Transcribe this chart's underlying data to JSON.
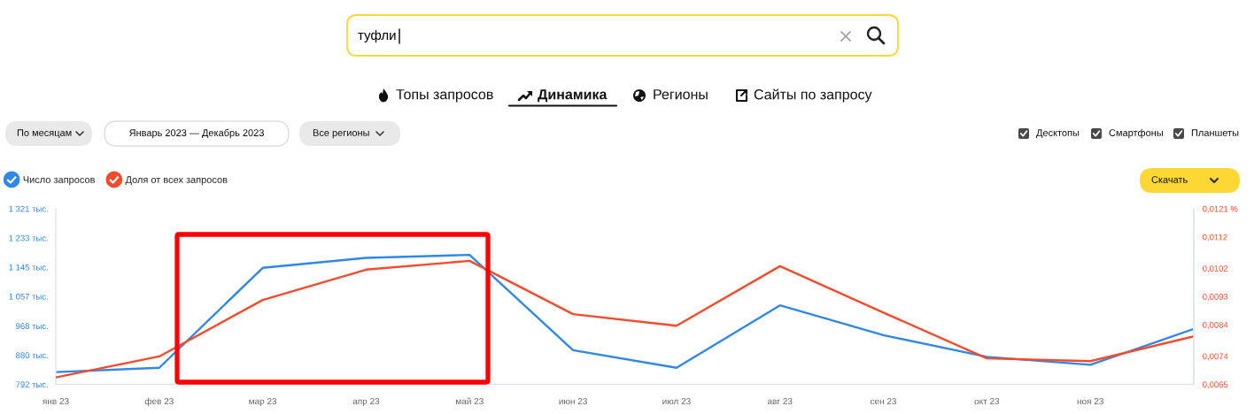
{
  "chart_data": {
    "type": "line",
    "title": "туфли",
    "annotations": [
      "Топы запросов",
      "Динамика",
      "Регионы",
      "Сайты по запросу",
      "По месяцам",
      "Январь 2023 — Декабрь 2023",
      "Все регионы",
      "Десктопы",
      "Смартфоны",
      "Планшеты",
      "Скачать"
    ],
    "categories": [
      "янв 23",
      "фев 23",
      "мар 23",
      "апр 23",
      "май 23",
      "июн 23",
      "июл 23",
      "авг 23",
      "сен 23",
      "окт 23",
      "ноя 23",
      null
    ],
    "series": [
      {
        "name": "Число запросов",
        "color": "#2f87e8",
        "values": [
          829,
          842,
          1143,
          1173,
          1182,
          895,
          842,
          1030,
          940,
          875,
          851,
          959
        ]
      },
      {
        "name": "Доля от всех запросов",
        "color": "#f64a2b",
        "axis": "y2",
        "values": [
          0.00672,
          0.00739,
          0.00919,
          0.01016,
          0.01044,
          0.00874,
          0.00837,
          0.01027,
          0.00879,
          0.00733,
          0.00724,
          0.00803
        ]
      }
    ],
    "ylim": [
      792,
      1321
    ],
    "yticks": [
      {
        "value": 792,
        "label": "792 тыс."
      },
      {
        "value": 880,
        "label": "880 тыс."
      },
      {
        "value": 968,
        "label": "968 тыс."
      },
      {
        "value": 1057,
        "label": "1 057 тыс."
      },
      {
        "value": 1145,
        "label": "1 145 тыс."
      },
      {
        "value": 1233,
        "label": "1 233 тыс."
      },
      {
        "value": 1321,
        "label": "1 321 тыс."
      }
    ],
    "y2lim": [
      0.0065,
      0.0121
    ],
    "y2ticks": [
      {
        "value": 0.0065,
        "label": "0,0065"
      },
      {
        "value": 0.0074,
        "label": "0,0074"
      },
      {
        "value": 0.0084,
        "label": "0,0084"
      },
      {
        "value": 0.0093,
        "label": "0,0093"
      },
      {
        "value": 0.0102,
        "label": "0,0102"
      },
      {
        "value": 0.0112,
        "label": "0,0112"
      },
      {
        "value": 0.0121,
        "label": "0,0121 %"
      }
    ],
    "legend": "top left"
  }
}
